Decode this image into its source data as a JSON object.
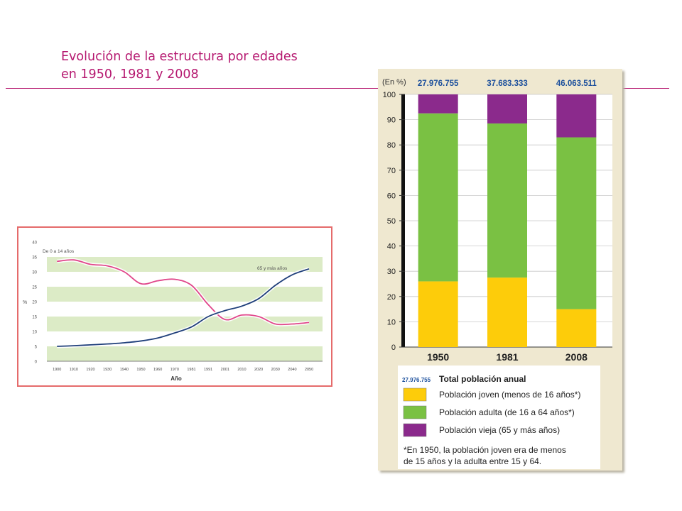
{
  "slide": {
    "title_line1": "Evolución de la estructura por edades",
    "title_line2": "en 1950, 1981 y 2008",
    "accent_color": "#b5176f"
  },
  "chart_data": [
    {
      "type": "line",
      "title": "",
      "xlabel": "Año",
      "ylabel": "%",
      "ylim": [
        0,
        40
      ],
      "yticks": [
        0,
        5,
        10,
        15,
        20,
        25,
        30,
        35,
        40
      ],
      "x": [
        "1900",
        "1910",
        "1920",
        "1930",
        "1940",
        "1950",
        "1960",
        "1970",
        "1981",
        "1991",
        "2001",
        "2010",
        "2020",
        "2030",
        "2040",
        "2050"
      ],
      "grid": "alternating green bands",
      "series": [
        {
          "name": "De 0 a 14 años",
          "color": "#e0468a",
          "values": [
            33.5,
            34.0,
            32.5,
            32.0,
            30.0,
            26.0,
            27.0,
            27.5,
            25.5,
            19.0,
            14.0,
            15.5,
            15.0,
            12.5,
            12.5,
            13.0
          ]
        },
        {
          "name": "65 y más años",
          "color": "#1f3f7a",
          "values": [
            5.0,
            5.2,
            5.5,
            5.8,
            6.2,
            6.8,
            7.8,
            9.5,
            11.5,
            15.0,
            17.0,
            18.5,
            21.0,
            25.5,
            29.0,
            31.0
          ]
        }
      ]
    },
    {
      "type": "bar",
      "stacked": true,
      "title": "",
      "ylabel": "(En %)",
      "ylim": [
        0,
        100
      ],
      "yticks": [
        0,
        10,
        20,
        30,
        40,
        50,
        60,
        70,
        80,
        90,
        100
      ],
      "categories": [
        "1950",
        "1981",
        "2008"
      ],
      "totals": [
        "27.976.755",
        "37.683.333",
        "46.063.511"
      ],
      "series": [
        {
          "name": "Población joven (menos de 16 años*)",
          "color": "#fdcc0a",
          "values": [
            26.0,
            27.5,
            15.0
          ]
        },
        {
          "name": "Población adulta (de 16 a 64 años*)",
          "color": "#7ac143",
          "values": [
            66.5,
            61.0,
            68.0
          ]
        },
        {
          "name": "Población vieja (65 y más años)",
          "color": "#8b2a8c",
          "values": [
            7.5,
            11.5,
            17.0
          ]
        }
      ],
      "legend": {
        "total_sample": "27.976.755",
        "total_label": "Total población anual",
        "note_line1": "*En 1950, la población joven era de menos",
        "note_line2": "de 15 años y la adulta entre 15 y 64."
      }
    }
  ]
}
